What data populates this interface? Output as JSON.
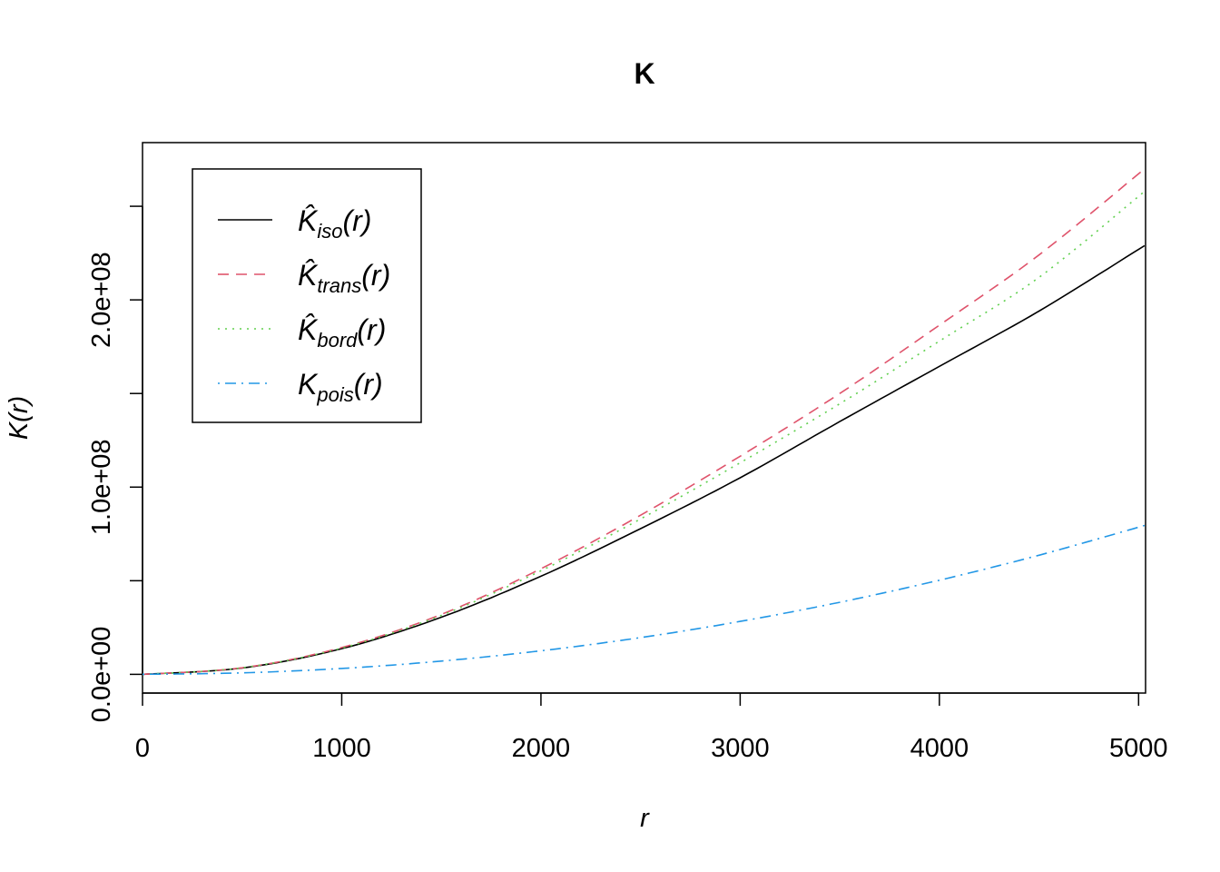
{
  "chart_data": {
    "type": "line",
    "title": "K",
    "xlabel": "r",
    "ylabel": "K(r)",
    "xlim": [
      0,
      5035
    ],
    "ylim": [
      -10000000,
      284000000
    ],
    "x_ticks": [
      0,
      1000,
      2000,
      3000,
      4000,
      5000
    ],
    "x_tick_labels": [
      "0",
      "1000",
      "2000",
      "3000",
      "4000",
      "5000"
    ],
    "y_ticks": [
      0,
      50000000,
      100000000,
      150000000,
      200000000,
      250000000
    ],
    "y_tick_labels": [
      "0.0e+00",
      "",
      "1.0e+08",
      "",
      "2.0e+08",
      ""
    ],
    "legend_position": "top-left",
    "x": [
      0,
      500,
      1000,
      1500,
      2000,
      2500,
      3000,
      3500,
      4000,
      4500,
      5030
    ],
    "series": [
      {
        "legend_main": "K̂",
        "legend_sub": "iso",
        "legend_arg": "(r)",
        "color": "#000000",
        "dash": "",
        "values": [
          0,
          3400000,
          13700000,
          30500000,
          52400000,
          77800000,
          105000000,
          135000000,
          164500000,
          194000000,
          229000000
        ]
      },
      {
        "legend_main": "K̂",
        "legend_sub": "trans",
        "legend_arg": "(r)",
        "color": "#DF536B",
        "dash": "12,8",
        "values": [
          0,
          3500000,
          14300000,
          32000000,
          56400000,
          85000000,
          116500000,
          150000000,
          186500000,
          224000000,
          270000000
        ]
      },
      {
        "legend_main": "K̂",
        "legend_sub": "bord",
        "legend_arg": "(r)",
        "color": "#61D04F",
        "dash": "2,6",
        "values": [
          0,
          3500000,
          14000000,
          31500000,
          55300000,
          83000000,
          113000000,
          144500000,
          178000000,
          212000000,
          258000000
        ]
      },
      {
        "legend_main": "K",
        "legend_sub": "pois",
        "legend_arg": "(r)",
        "color": "#2297E6",
        "dash": "2,6,12,6",
        "values": [
          0,
          785000,
          3140000,
          7070000,
          12570000,
          19630000,
          28270000,
          38480000,
          50270000,
          63620000,
          79490000
        ]
      }
    ]
  }
}
